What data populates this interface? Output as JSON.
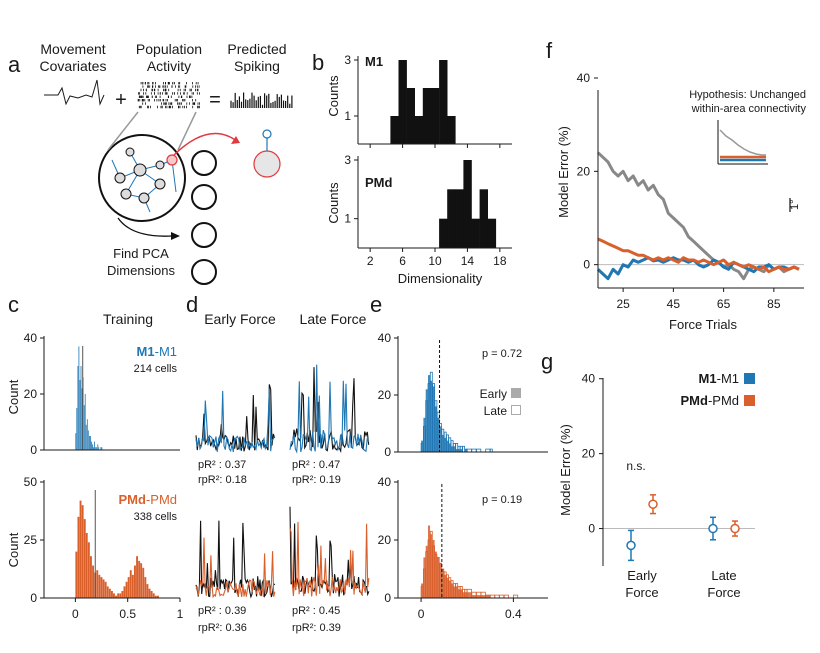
{
  "colors": {
    "m1": "#1f77b4",
    "pmd": "#d95f2b",
    "gray": "#888888",
    "black": "#111111"
  },
  "panels": {
    "a": {
      "letter": "a",
      "cov": [
        "Movement",
        "Covariates"
      ],
      "pop": [
        "Population",
        "Activity"
      ],
      "pred": [
        "Predicted",
        "Spiking"
      ],
      "plus": "+",
      "eq": "=",
      "pca": [
        "Find PCA",
        "Dimensions"
      ]
    },
    "b": {
      "letter": "b",
      "xlabel": "Dimensionality",
      "ylabel": "Counts"
    },
    "c": {
      "letter": "c",
      "title": "Training",
      "ylabel": "Count",
      "m1_bold": "M1",
      "m1_rest": "-M1",
      "m1_cells": "214 cells",
      "pmd_bold": "PMd",
      "pmd_rest": "-PMd",
      "pmd_cells": "338 cells"
    },
    "d": {
      "letter": "d",
      "early": "Early Force",
      "late": "Late Force",
      "stats": {
        "m1_early": [
          "pR² : 0.37",
          "rpR²: 0.18"
        ],
        "m1_late": [
          "pR² : 0.47",
          "rpR²: 0.19"
        ],
        "pmd_early": [
          "pR² : 0.39",
          "rpR²: 0.36"
        ],
        "pmd_late": [
          "pR² : 0.45",
          "rpR²: 0.39"
        ]
      }
    },
    "e": {
      "letter": "e",
      "p_m1": "p = 0.72",
      "p_pmd": "p = 0.19",
      "leg_early": "Early",
      "leg_late": "Late"
    },
    "f": {
      "letter": "f",
      "ylabel": "Model Error (%)",
      "xlabel": "Force Trials",
      "inset": [
        "Hypothesis: Unchanged",
        "within-area connectivity"
      ],
      "scale": "1°"
    },
    "g": {
      "letter": "g",
      "ylabel": "Model Error (%)",
      "ns": "n.s.",
      "leg_m1_bold": "M1",
      "leg_m1_rest": "-M1",
      "leg_pmd_bold": "PMd",
      "leg_pmd_rest": "-PMd",
      "cats": [
        [
          "Early",
          "Force"
        ],
        [
          "Late",
          "Force"
        ]
      ]
    }
  },
  "chart_data": [
    {
      "panel": "b",
      "name": "M1",
      "type": "bar",
      "x": [
        5,
        6,
        7,
        8,
        9,
        10,
        11,
        12
      ],
      "values": [
        1,
        3,
        2,
        1,
        2,
        2,
        3,
        1
      ],
      "ylim": [
        0,
        3
      ],
      "xticks": [
        2,
        6,
        10,
        14,
        18
      ],
      "yticks": [
        1,
        3
      ]
    },
    {
      "panel": "b",
      "name": "PMd",
      "type": "bar",
      "x": [
        11,
        12,
        13,
        14,
        15,
        16,
        17
      ],
      "values": [
        1,
        2,
        2,
        3,
        1,
        2,
        1
      ],
      "ylim": [
        0,
        3
      ],
      "xticks": [
        2,
        6,
        10,
        14,
        18
      ],
      "yticks": [
        1,
        3
      ]
    },
    {
      "panel": "c",
      "name": "M1-M1",
      "type": "bar",
      "xlim": [
        -0.3,
        1
      ],
      "ylim": [
        0,
        40
      ],
      "yticks": [
        0,
        20,
        40
      ],
      "vline": 0.07,
      "x": [
        0.0,
        0.01,
        0.02,
        0.03,
        0.04,
        0.05,
        0.06,
        0.07,
        0.08,
        0.09,
        0.1,
        0.11,
        0.12,
        0.13,
        0.14,
        0.15,
        0.16,
        0.17,
        0.18,
        0.19,
        0.2,
        0.21,
        0.22,
        0.23,
        0.24,
        0.25
      ],
      "values": [
        6,
        15,
        30,
        37,
        25,
        30,
        22,
        26,
        16,
        20,
        9,
        11,
        7,
        5,
        5,
        3,
        2,
        1,
        3,
        1,
        1,
        2,
        1,
        0,
        1,
        1
      ]
    },
    {
      "panel": "c",
      "name": "PMd-PMd",
      "type": "bar",
      "xlim": [
        -0.3,
        1
      ],
      "ylim": [
        0,
        50
      ],
      "xticks": [
        0,
        0.5,
        1
      ],
      "yticks": [
        0,
        25,
        50
      ],
      "vline": 0.19,
      "x": [
        0.0,
        0.02,
        0.04,
        0.06,
        0.08,
        0.1,
        0.12,
        0.14,
        0.16,
        0.18,
        0.2,
        0.22,
        0.24,
        0.26,
        0.28,
        0.3,
        0.32,
        0.34,
        0.36,
        0.38,
        0.4,
        0.42,
        0.44,
        0.46,
        0.48,
        0.5,
        0.52,
        0.54,
        0.56,
        0.58,
        0.6,
        0.62,
        0.64,
        0.66,
        0.68,
        0.7,
        0.72,
        0.74,
        0.76,
        0.78
      ],
      "values": [
        20,
        35,
        42,
        40,
        34,
        28,
        24,
        18,
        14,
        11,
        12,
        10,
        9,
        8,
        7,
        5,
        4,
        3,
        2,
        1,
        2,
        2,
        3,
        5,
        7,
        9,
        12,
        10,
        14,
        18,
        16,
        15,
        13,
        9,
        6,
        4,
        3,
        2,
        1,
        1
      ]
    },
    {
      "panel": "e",
      "name": "M1-M1",
      "type": "bar",
      "xlim": [
        -0.1,
        0.55
      ],
      "ylim": [
        0,
        40
      ],
      "yticks": [
        0,
        20,
        40
      ],
      "vline": 0.08,
      "x": [
        0.0,
        0.01,
        0.02,
        0.03,
        0.04,
        0.05,
        0.06,
        0.07,
        0.08,
        0.09,
        0.1,
        0.11,
        0.12,
        0.13,
        0.14,
        0.15,
        0.16,
        0.17,
        0.18,
        0.19,
        0.2,
        0.22,
        0.24,
        0.26,
        0.28,
        0.3
      ],
      "early": [
        4,
        12,
        22,
        27,
        25,
        23,
        16,
        12,
        9,
        6,
        5,
        4,
        3,
        2,
        2,
        1,
        1,
        1,
        0,
        1,
        0,
        0,
        0,
        0,
        0,
        0
      ],
      "late": [
        3,
        9,
        18,
        24,
        28,
        24,
        18,
        14,
        10,
        8,
        7,
        6,
        5,
        4,
        3,
        3,
        2,
        2,
        2,
        1,
        1,
        1,
        1,
        0,
        1,
        1
      ]
    },
    {
      "panel": "e",
      "name": "PMd-PMd",
      "type": "bar",
      "xlim": [
        -0.1,
        0.55
      ],
      "ylim": [
        0,
        40
      ],
      "xticks": [
        0,
        0.4
      ],
      "yticks": [
        0,
        20,
        40
      ],
      "vline": 0.09,
      "x": [
        0.0,
        0.01,
        0.02,
        0.03,
        0.04,
        0.05,
        0.06,
        0.07,
        0.08,
        0.09,
        0.1,
        0.11,
        0.12,
        0.13,
        0.14,
        0.15,
        0.16,
        0.17,
        0.18,
        0.19,
        0.2,
        0.22,
        0.24,
        0.26,
        0.28,
        0.3,
        0.32,
        0.34,
        0.36,
        0.38,
        0.4,
        0.42
      ],
      "early": [
        5,
        14,
        18,
        25,
        22,
        20,
        16,
        14,
        12,
        10,
        8,
        7,
        6,
        5,
        4,
        4,
        3,
        3,
        2,
        2,
        2,
        1,
        1,
        1,
        1,
        0,
        0,
        0,
        0,
        0,
        0,
        0
      ],
      "late": [
        4,
        10,
        16,
        20,
        23,
        18,
        15,
        14,
        12,
        10,
        9,
        8,
        7,
        6,
        5,
        5,
        4,
        4,
        3,
        3,
        3,
        2,
        2,
        2,
        1,
        1,
        1,
        1,
        1,
        0,
        1,
        0
      ]
    },
    {
      "panel": "f",
      "type": "line",
      "xlim": [
        15,
        97
      ],
      "ylim": [
        -5,
        40
      ],
      "xticks": [
        25,
        45,
        65,
        85
      ],
      "yticks": [
        0,
        20,
        40
      ],
      "x": [
        15,
        17,
        19,
        21,
        23,
        25,
        27,
        29,
        31,
        33,
        35,
        37,
        39,
        41,
        43,
        45,
        47,
        49,
        51,
        53,
        55,
        57,
        59,
        61,
        63,
        65,
        67,
        69,
        71,
        73,
        75,
        77,
        79,
        81,
        83,
        85,
        87,
        89,
        91,
        93,
        95
      ],
      "series": [
        {
          "name": "gray",
          "values": [
            24,
            23,
            22,
            20,
            19,
            20,
            18,
            19,
            17,
            18,
            16,
            17,
            15,
            14,
            11,
            10,
            9,
            8,
            6,
            5,
            4,
            3,
            2,
            1,
            0.5,
            -0.5,
            0,
            -1,
            -1.5,
            -3,
            -1,
            -0.5,
            -1,
            -1.5,
            0,
            -1,
            -0.5,
            -1.5,
            -1,
            -0.5,
            -1
          ]
        },
        {
          "name": "M1",
          "values": [
            -1,
            -2,
            -3,
            -1,
            -2,
            0,
            -0.5,
            1,
            0.5,
            1,
            1.5,
            0.8,
            1,
            0.5,
            1,
            1.5,
            1,
            1,
            0.5,
            1,
            0,
            -0.5,
            0,
            1,
            0.5,
            -0.5,
            -1,
            0.5,
            0,
            -0.5,
            -1,
            -1.5,
            -0.5,
            -0.5,
            0,
            -1,
            -0.5,
            -0.5,
            -1,
            -0.5,
            -1
          ]
        },
        {
          "name": "PMd",
          "values": [
            5.5,
            5,
            4.5,
            4,
            3.5,
            3,
            3,
            2.5,
            2,
            2,
            1.5,
            1,
            1.5,
            1,
            1.5,
            1,
            0.5,
            1.5,
            1,
            1,
            0.5,
            1,
            0.5,
            0,
            0.5,
            1,
            0,
            0.5,
            0,
            -0.5,
            0,
            -0.5,
            -1,
            -0.5,
            -1.5,
            -1,
            -0.5,
            -1,
            -1,
            -0.5,
            -1
          ]
        }
      ]
    },
    {
      "panel": "g",
      "type": "scatter",
      "categories": [
        "Early Force",
        "Late Force"
      ],
      "ylim": [
        -10,
        45
      ],
      "yticks": [
        0,
        20,
        40
      ],
      "series": [
        {
          "name": "M1-M1",
          "values": [
            -4.5,
            0
          ],
          "err": [
            4,
            3
          ]
        },
        {
          "name": "PMd-PMd",
          "values": [
            6.5,
            0
          ],
          "err": [
            2.5,
            2
          ]
        }
      ]
    }
  ]
}
